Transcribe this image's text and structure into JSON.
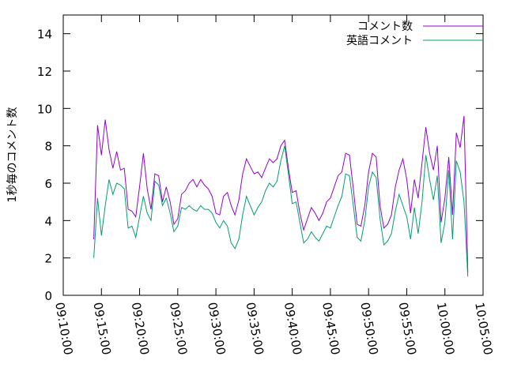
{
  "chart_data": {
    "type": "line",
    "ylabel": "1秒毎のコメント数",
    "ylim": [
      0,
      15
    ],
    "y_ticks": [
      0,
      2,
      4,
      6,
      8,
      10,
      12,
      14
    ],
    "x_range": [
      "09:10:00",
      "10:05:00"
    ],
    "x_ticks": [
      "09:10:00",
      "09:15:00",
      "09:20:00",
      "09:25:00",
      "09:30:00",
      "09:35:00",
      "09:40:00",
      "09:45:00",
      "09:50:00",
      "09:55:00",
      "10:00:00",
      "10:05:00"
    ],
    "legend_position": "top-right",
    "grid": false,
    "series": [
      {
        "name": "コメント数",
        "color": "#9400d3",
        "points": [
          [
            "09:14:00",
            3.0
          ],
          [
            "09:14:30",
            9.1
          ],
          [
            "09:15:00",
            7.5
          ],
          [
            "09:15:30",
            9.4
          ],
          [
            "09:16:00",
            7.8
          ],
          [
            "09:16:30",
            6.8
          ],
          [
            "09:17:00",
            7.7
          ],
          [
            "09:17:30",
            6.7
          ],
          [
            "09:18:00",
            6.8
          ],
          [
            "09:18:30",
            4.6
          ],
          [
            "09:19:00",
            4.5
          ],
          [
            "09:19:30",
            4.2
          ],
          [
            "09:20:00",
            5.8
          ],
          [
            "09:20:30",
            7.6
          ],
          [
            "09:21:00",
            5.7
          ],
          [
            "09:21:30",
            4.6
          ],
          [
            "09:22:00",
            6.5
          ],
          [
            "09:22:30",
            6.4
          ],
          [
            "09:23:00",
            5.0
          ],
          [
            "09:23:30",
            5.8
          ],
          [
            "09:24:00",
            5.0
          ],
          [
            "09:24:30",
            3.8
          ],
          [
            "09:25:00",
            4.1
          ],
          [
            "09:25:30",
            5.4
          ],
          [
            "09:26:00",
            5.6
          ],
          [
            "09:26:30",
            6.0
          ],
          [
            "09:27:00",
            6.2
          ],
          [
            "09:27:30",
            5.8
          ],
          [
            "09:28:00",
            6.2
          ],
          [
            "09:28:30",
            5.9
          ],
          [
            "09:29:00",
            5.7
          ],
          [
            "09:29:30",
            5.3
          ],
          [
            "09:30:00",
            4.4
          ],
          [
            "09:30:30",
            4.3
          ],
          [
            "09:31:00",
            5.3
          ],
          [
            "09:31:30",
            5.5
          ],
          [
            "09:32:00",
            4.8
          ],
          [
            "09:32:30",
            4.3
          ],
          [
            "09:33:00",
            5.1
          ],
          [
            "09:33:30",
            6.5
          ],
          [
            "09:34:00",
            7.3
          ],
          [
            "09:34:30",
            6.9
          ],
          [
            "09:35:00",
            6.5
          ],
          [
            "09:35:30",
            6.6
          ],
          [
            "09:36:00",
            6.3
          ],
          [
            "09:36:30",
            6.8
          ],
          [
            "09:37:00",
            7.3
          ],
          [
            "09:37:30",
            7.1
          ],
          [
            "09:38:00",
            7.3
          ],
          [
            "09:38:30",
            8.0
          ],
          [
            "09:39:00",
            8.3
          ],
          [
            "09:39:30",
            6.8
          ],
          [
            "09:40:00",
            5.5
          ],
          [
            "09:40:30",
            5.6
          ],
          [
            "09:41:00",
            4.4
          ],
          [
            "09:41:30",
            3.5
          ],
          [
            "09:42:00",
            4.1
          ],
          [
            "09:42:30",
            4.7
          ],
          [
            "09:43:00",
            4.4
          ],
          [
            "09:43:30",
            4.0
          ],
          [
            "09:44:00",
            4.4
          ],
          [
            "09:44:30",
            5.0
          ],
          [
            "09:45:00",
            5.2
          ],
          [
            "09:45:30",
            5.8
          ],
          [
            "09:46:00",
            6.4
          ],
          [
            "09:46:30",
            6.6
          ],
          [
            "09:47:00",
            7.6
          ],
          [
            "09:47:30",
            7.5
          ],
          [
            "09:48:00",
            5.7
          ],
          [
            "09:48:30",
            3.8
          ],
          [
            "09:49:00",
            3.7
          ],
          [
            "09:49:30",
            4.8
          ],
          [
            "09:50:00",
            6.6
          ],
          [
            "09:50:30",
            7.6
          ],
          [
            "09:51:00",
            7.4
          ],
          [
            "09:51:30",
            4.8
          ],
          [
            "09:52:00",
            3.6
          ],
          [
            "09:52:30",
            3.8
          ],
          [
            "09:53:00",
            4.3
          ],
          [
            "09:53:30",
            5.8
          ],
          [
            "09:54:00",
            6.7
          ],
          [
            "09:54:30",
            7.3
          ],
          [
            "09:55:00",
            6.2
          ],
          [
            "09:55:30",
            4.4
          ],
          [
            "09:56:00",
            6.2
          ],
          [
            "09:56:30",
            5.2
          ],
          [
            "09:57:00",
            7.1
          ],
          [
            "09:57:30",
            9.0
          ],
          [
            "09:58:00",
            7.6
          ],
          [
            "09:58:30",
            6.7
          ],
          [
            "09:59:00",
            8.0
          ],
          [
            "09:59:30",
            3.9
          ],
          [
            "10:00:00",
            5.2
          ],
          [
            "10:00:30",
            7.4
          ],
          [
            "10:01:00",
            4.3
          ],
          [
            "10:01:30",
            8.7
          ],
          [
            "10:02:00",
            7.9
          ],
          [
            "10:02:30",
            9.6
          ],
          [
            "10:03:00",
            1.2
          ]
        ]
      },
      {
        "name": "英語コメント",
        "color": "#009e73",
        "points": [
          [
            "09:14:00",
            2.0
          ],
          [
            "09:14:30",
            5.2
          ],
          [
            "09:15:00",
            3.2
          ],
          [
            "09:15:30",
            4.8
          ],
          [
            "09:16:00",
            6.2
          ],
          [
            "09:16:30",
            5.4
          ],
          [
            "09:17:00",
            6.0
          ],
          [
            "09:17:30",
            5.9
          ],
          [
            "09:18:00",
            5.7
          ],
          [
            "09:18:30",
            3.6
          ],
          [
            "09:19:00",
            3.7
          ],
          [
            "09:19:30",
            3.1
          ],
          [
            "09:20:00",
            4.2
          ],
          [
            "09:20:30",
            5.3
          ],
          [
            "09:21:00",
            4.4
          ],
          [
            "09:21:30",
            4.0
          ],
          [
            "09:22:00",
            6.1
          ],
          [
            "09:22:30",
            5.9
          ],
          [
            "09:23:00",
            4.8
          ],
          [
            "09:23:30",
            5.2
          ],
          [
            "09:24:00",
            4.4
          ],
          [
            "09:24:30",
            3.4
          ],
          [
            "09:25:00",
            3.7
          ],
          [
            "09:25:30",
            4.7
          ],
          [
            "09:26:00",
            4.6
          ],
          [
            "09:26:30",
            4.8
          ],
          [
            "09:27:00",
            4.6
          ],
          [
            "09:27:30",
            4.5
          ],
          [
            "09:28:00",
            4.8
          ],
          [
            "09:28:30",
            4.6
          ],
          [
            "09:29:00",
            4.6
          ],
          [
            "09:29:30",
            4.4
          ],
          [
            "09:30:00",
            3.9
          ],
          [
            "09:30:30",
            3.6
          ],
          [
            "09:31:00",
            4.0
          ],
          [
            "09:31:30",
            3.7
          ],
          [
            "09:32:00",
            2.8
          ],
          [
            "09:32:30",
            2.5
          ],
          [
            "09:33:00",
            3.0
          ],
          [
            "09:33:30",
            4.3
          ],
          [
            "09:34:00",
            5.3
          ],
          [
            "09:34:30",
            4.8
          ],
          [
            "09:35:00",
            4.3
          ],
          [
            "09:35:30",
            4.7
          ],
          [
            "09:36:00",
            5.0
          ],
          [
            "09:36:30",
            5.6
          ],
          [
            "09:37:00",
            6.0
          ],
          [
            "09:37:30",
            5.8
          ],
          [
            "09:38:00",
            6.1
          ],
          [
            "09:38:30",
            7.2
          ],
          [
            "09:39:00",
            8.0
          ],
          [
            "09:39:30",
            6.5
          ],
          [
            "09:40:00",
            4.9
          ],
          [
            "09:40:30",
            5.0
          ],
          [
            "09:41:00",
            3.9
          ],
          [
            "09:41:30",
            2.8
          ],
          [
            "09:42:00",
            3.0
          ],
          [
            "09:42:30",
            3.4
          ],
          [
            "09:43:00",
            3.1
          ],
          [
            "09:43:30",
            2.9
          ],
          [
            "09:44:00",
            3.3
          ],
          [
            "09:44:30",
            3.7
          ],
          [
            "09:45:00",
            3.6
          ],
          [
            "09:45:30",
            4.2
          ],
          [
            "09:46:00",
            4.8
          ],
          [
            "09:46:30",
            5.3
          ],
          [
            "09:47:00",
            6.5
          ],
          [
            "09:47:30",
            6.4
          ],
          [
            "09:48:00",
            4.8
          ],
          [
            "09:48:30",
            3.1
          ],
          [
            "09:49:00",
            2.9
          ],
          [
            "09:49:30",
            4.0
          ],
          [
            "09:50:00",
            5.8
          ],
          [
            "09:50:30",
            6.6
          ],
          [
            "09:51:00",
            6.3
          ],
          [
            "09:51:30",
            4.1
          ],
          [
            "09:52:00",
            2.7
          ],
          [
            "09:52:30",
            2.9
          ],
          [
            "09:53:00",
            3.3
          ],
          [
            "09:53:30",
            4.5
          ],
          [
            "09:54:00",
            5.4
          ],
          [
            "09:54:30",
            4.8
          ],
          [
            "09:55:00",
            4.2
          ],
          [
            "09:55:30",
            3.0
          ],
          [
            "09:56:00",
            4.7
          ],
          [
            "09:56:30",
            3.3
          ],
          [
            "09:57:00",
            5.0
          ],
          [
            "09:57:30",
            7.5
          ],
          [
            "09:58:00",
            6.2
          ],
          [
            "09:58:30",
            5.1
          ],
          [
            "09:59:00",
            6.4
          ],
          [
            "09:59:30",
            2.8
          ],
          [
            "10:00:00",
            3.9
          ],
          [
            "10:00:30",
            6.7
          ],
          [
            "10:01:00",
            3.0
          ],
          [
            "10:01:30",
            7.2
          ],
          [
            "10:02:00",
            6.6
          ],
          [
            "10:02:30",
            5.0
          ],
          [
            "10:03:00",
            1.0
          ]
        ]
      }
    ]
  }
}
